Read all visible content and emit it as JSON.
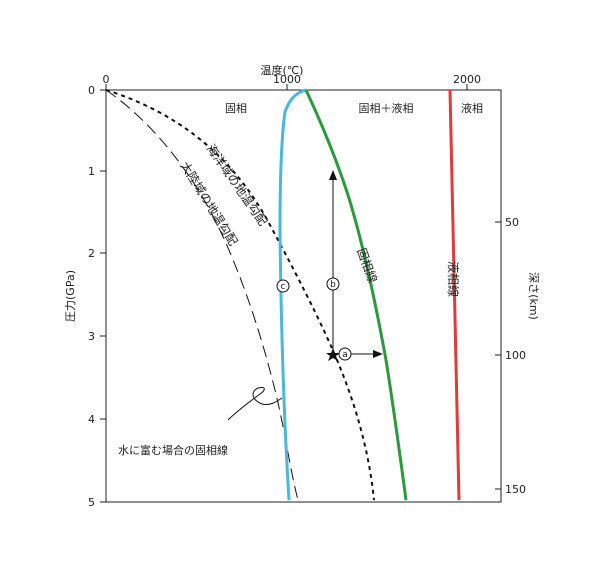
{
  "title_top": "温度(℃)",
  "x_ticks": [
    "0",
    "1000",
    "2000"
  ],
  "y_left_label": "圧力(GPa)",
  "y_left_ticks": [
    "0",
    "1",
    "2",
    "3",
    "4",
    "5"
  ],
  "y_right_label": "深さ(km)",
  "y_right_ticks": [
    "50",
    "100",
    "150"
  ],
  "regions": {
    "solid": "固相",
    "solid_liquid": "固相＋液相",
    "liquid": "液相"
  },
  "curves": {
    "solidus": "固相線",
    "liquidus": "液相線",
    "continental_geotherm": "大陸域の地温勾配",
    "oceanic_geotherm": "海洋域の地温勾配",
    "wet_solidus": "水に富む場合の固相線"
  },
  "markers": {
    "a": "a",
    "b": "b",
    "c": "c"
  },
  "colors": {
    "solidus": "#2a9a3c",
    "liquidus": "#e03a3a",
    "wet_solidus": "#4ab8dd",
    "geotherm": "#111111"
  }
}
